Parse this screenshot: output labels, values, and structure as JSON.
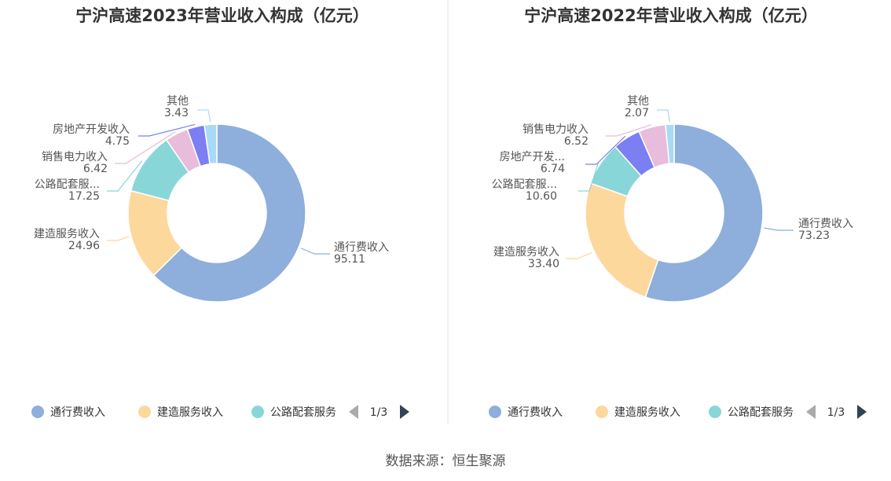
{
  "chart_data": [
    {
      "type": "pie",
      "title": "宁沪高速2023年营业收入构成（亿元）",
      "categories": [
        "通行费收入",
        "建造服务收入",
        "公路配套服务",
        "销售电力收入",
        "房地产开发收入",
        "其他"
      ],
      "display_labels": [
        "通行费收入",
        "建造服务收入",
        "公路配套服...",
        "销售电力收入",
        "房地产开发收入",
        "其他"
      ],
      "value_labels": [
        "95.11",
        "24.96",
        "17.25",
        "6.42",
        "4.75",
        "3.43"
      ],
      "values": [
        95.11,
        24.96,
        17.25,
        6.42,
        4.75,
        3.43
      ],
      "legend": {
        "items": [
          "通行费收入",
          "建造服务收入",
          "公路配套服务"
        ],
        "page": "1/3",
        "placement": "bottom"
      }
    },
    {
      "type": "pie",
      "title": "宁沪高速2022年营业收入构成（亿元）",
      "categories": [
        "通行费收入",
        "建造服务收入",
        "公路配套服务",
        "房地产开发收入",
        "销售电力收入",
        "其他"
      ],
      "display_labels": [
        "通行费收入",
        "建造服务收入",
        "公路配套服...",
        "房地产开发...",
        "销售电力收入",
        "其他"
      ],
      "value_labels": [
        "73.23",
        "33.40",
        "10.60",
        "6.74",
        "6.52",
        "2.07"
      ],
      "values": [
        73.23,
        33.4,
        10.6,
        6.74,
        6.52,
        2.07
      ],
      "legend": {
        "items": [
          "通行费收入",
          "建造服务收入",
          "公路配套服务"
        ],
        "page": "1/3",
        "placement": "bottom"
      }
    }
  ],
  "colors": {
    "通行费收入": "#8eaedc",
    "建造服务收入": "#fdd89c",
    "公路配套服务": "#89d6d9",
    "销售电力收入": "#e8bcdb",
    "房地产开发收入": "#7b7ff2",
    "其他": "#a9daf5"
  },
  "source": "数据来源：恒生聚源"
}
